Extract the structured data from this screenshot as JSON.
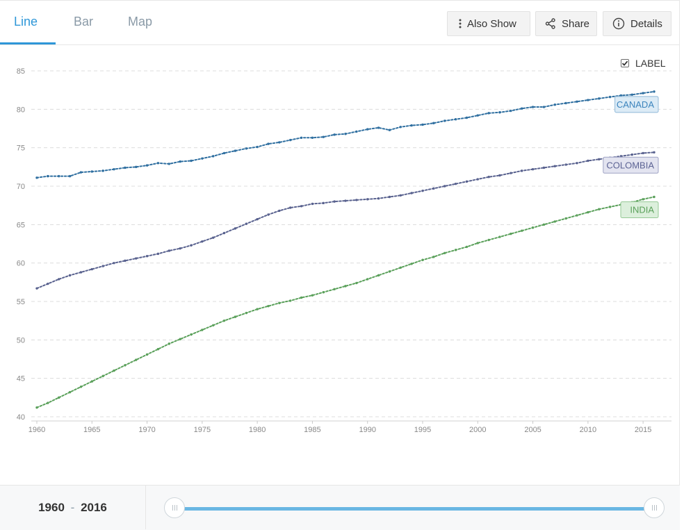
{
  "tabs": [
    {
      "label": "Line",
      "active": true
    },
    {
      "label": "Bar",
      "active": false
    },
    {
      "label": "Map",
      "active": false
    }
  ],
  "toolbar": {
    "also_show_label": "Also Show",
    "share_label": "Share",
    "details_label": "Details",
    "icons": [
      "vertical-dots-icon",
      "share-icon",
      "info-icon"
    ]
  },
  "label_toggle": {
    "label": "LABEL",
    "checked": true
  },
  "chart_data": {
    "type": "line",
    "x": [
      1960,
      1961,
      1962,
      1963,
      1964,
      1965,
      1966,
      1967,
      1968,
      1969,
      1970,
      1971,
      1972,
      1973,
      1974,
      1975,
      1976,
      1977,
      1978,
      1979,
      1980,
      1981,
      1982,
      1983,
      1984,
      1985,
      1986,
      1987,
      1988,
      1989,
      1990,
      1991,
      1992,
      1993,
      1994,
      1995,
      1996,
      1997,
      1998,
      1999,
      2000,
      2001,
      2002,
      2003,
      2004,
      2005,
      2006,
      2007,
      2008,
      2009,
      2010,
      2011,
      2012,
      2013,
      2014,
      2015,
      2016
    ],
    "x_ticks": [
      1960,
      1965,
      1970,
      1975,
      1980,
      1985,
      1990,
      1995,
      2000,
      2005,
      2010,
      2015
    ],
    "y_ticks": [
      40,
      45,
      50,
      55,
      60,
      65,
      70,
      75,
      80,
      85
    ],
    "xlim": [
      1960,
      2016
    ],
    "ylim": [
      40,
      85
    ],
    "grid": true,
    "series": [
      {
        "name": "CANADA",
        "color": "#2f6fa0",
        "label_bg": "#dcebf6",
        "label_border": "#8fb8d8",
        "label_text_color": "#3b84bd",
        "values": [
          71.1,
          71.3,
          71.3,
          71.3,
          71.8,
          71.9,
          72.0,
          72.2,
          72.4,
          72.5,
          72.7,
          73.0,
          72.9,
          73.2,
          73.3,
          73.6,
          73.9,
          74.3,
          74.6,
          74.9,
          75.1,
          75.5,
          75.7,
          76.0,
          76.3,
          76.3,
          76.4,
          76.7,
          76.8,
          77.1,
          77.4,
          77.6,
          77.3,
          77.7,
          77.9,
          78.0,
          78.2,
          78.5,
          78.7,
          78.9,
          79.2,
          79.5,
          79.6,
          79.8,
          80.1,
          80.3,
          80.3,
          80.6,
          80.8,
          81.0,
          81.2,
          81.4,
          81.6,
          81.8,
          81.9,
          82.1,
          82.3
        ]
      },
      {
        "name": "COLOMBIA",
        "color": "#58618e",
        "label_bg": "#e3e4f0",
        "label_border": "#9ea2c4",
        "label_text_color": "#5c6394",
        "values": [
          56.7,
          57.3,
          57.9,
          58.4,
          58.8,
          59.2,
          59.6,
          60.0,
          60.3,
          60.6,
          60.9,
          61.2,
          61.6,
          61.9,
          62.3,
          62.8,
          63.3,
          63.9,
          64.5,
          65.1,
          65.7,
          66.3,
          66.8,
          67.2,
          67.4,
          67.7,
          67.8,
          68.0,
          68.1,
          68.2,
          68.3,
          68.4,
          68.6,
          68.8,
          69.1,
          69.4,
          69.7,
          70.0,
          70.3,
          70.6,
          70.9,
          71.2,
          71.4,
          71.7,
          72.0,
          72.2,
          72.4,
          72.6,
          72.8,
          73.0,
          73.3,
          73.5,
          73.7,
          73.9,
          74.1,
          74.3,
          74.4
        ]
      },
      {
        "name": "INDIA",
        "color": "#5aa05a",
        "label_bg": "#dcefdc",
        "label_border": "#95c895",
        "label_text_color": "#5aa05a",
        "values": [
          41.2,
          41.8,
          42.5,
          43.2,
          43.9,
          44.6,
          45.3,
          46.0,
          46.7,
          47.4,
          48.1,
          48.8,
          49.5,
          50.1,
          50.7,
          51.3,
          51.9,
          52.5,
          53.0,
          53.5,
          54.0,
          54.4,
          54.8,
          55.1,
          55.5,
          55.8,
          56.2,
          56.6,
          57.0,
          57.4,
          57.9,
          58.4,
          58.9,
          59.4,
          59.9,
          60.4,
          60.8,
          61.3,
          61.7,
          62.1,
          62.6,
          63.0,
          63.4,
          63.8,
          64.2,
          64.6,
          65.0,
          65.4,
          65.8,
          66.2,
          66.6,
          67.0,
          67.3,
          67.6,
          67.9,
          68.3,
          68.6
        ]
      }
    ]
  },
  "footer": {
    "range_start": "1960",
    "range_sep": "-",
    "range_end": "2016"
  }
}
